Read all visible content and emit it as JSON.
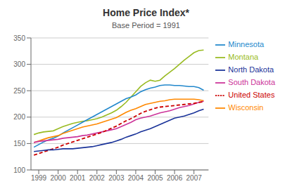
{
  "chart_data": {
    "type": "line",
    "title": "Home Price Index*",
    "subtitle": "Base Period = 1991",
    "x": [
      1998.75,
      1999.0,
      1999.25,
      1999.5,
      1999.75,
      2000.0,
      2000.25,
      2000.5,
      2000.75,
      2001.0,
      2001.25,
      2001.5,
      2001.75,
      2002.0,
      2002.25,
      2002.5,
      2002.75,
      2003.0,
      2003.25,
      2003.5,
      2003.75,
      2004.0,
      2004.25,
      2004.5,
      2004.75,
      2005.0,
      2005.25,
      2005.5,
      2005.75,
      2006.0,
      2006.25,
      2006.5,
      2006.75,
      2007.0,
      2007.25,
      2007.5
    ],
    "series": [
      {
        "name": "Montana",
        "color": "#99bb22",
        "line_style": "solid",
        "values": [
          167,
          170,
          172,
          173,
          174,
          178,
          182,
          185,
          188,
          190,
          192,
          193,
          195,
          197,
          200,
          204,
          208,
          213,
          220,
          228,
          238,
          248,
          258,
          265,
          270,
          268,
          270,
          278,
          285,
          292,
          300,
          308,
          315,
          322,
          326,
          327
        ]
      },
      {
        "name": "Minnesota",
        "color": "#2288cc",
        "line_style": "solid",
        "values": [
          143,
          148,
          153,
          157,
          160,
          164,
          170,
          175,
          180,
          185,
          190,
          195,
          200,
          205,
          210,
          215,
          220,
          225,
          230,
          235,
          238,
          242,
          248,
          252,
          255,
          257,
          260,
          261,
          261,
          260,
          260,
          259,
          258,
          258,
          256,
          251
        ]
      },
      {
        "name": "Wisconsin",
        "color": "#ff8800",
        "line_style": "solid",
        "values": [
          152,
          155,
          158,
          161,
          163,
          165,
          169,
          172,
          175,
          178,
          181,
          183,
          185,
          187,
          190,
          193,
          196,
          199,
          204,
          209,
          213,
          216,
          220,
          224,
          226,
          228,
          230,
          231,
          233,
          234,
          234,
          234,
          234,
          234,
          233,
          231
        ]
      },
      {
        "name": "South Dakota",
        "color": "#cc3399",
        "line_style": "solid",
        "values": [
          152,
          154,
          155,
          156,
          157,
          158,
          160,
          161,
          162,
          163,
          165,
          166,
          168,
          170,
          172,
          174,
          176,
          178,
          182,
          186,
          190,
          195,
          198,
          200,
          202,
          205,
          208,
          210,
          212,
          215,
          218,
          220,
          222,
          225,
          228,
          230
        ]
      },
      {
        "name": "United States",
        "color": "#cc0000",
        "line_style": "dashed",
        "values": [
          128,
          131,
          134,
          137,
          140,
          143,
          147,
          150,
          153,
          156,
          159,
          162,
          165,
          168,
          171,
          175,
          179,
          183,
          188,
          193,
          197,
          202,
          207,
          211,
          214,
          217,
          219,
          220,
          221,
          222,
          223,
          224,
          225,
          226,
          228,
          229
        ]
      },
      {
        "name": "North Dakota",
        "color": "#1a3399",
        "line_style": "solid",
        "values": [
          135,
          136,
          137,
          138,
          138,
          139,
          140,
          140,
          140,
          141,
          142,
          143,
          144,
          146,
          148,
          150,
          152,
          155,
          158,
          162,
          165,
          168,
          172,
          175,
          178,
          182,
          186,
          190,
          194,
          198,
          200,
          202,
          205,
          208,
          212,
          215
        ]
      }
    ],
    "xlim": [
      1998.6,
      2007.75
    ],
    "xticks": [
      1999,
      2000,
      2001,
      2002,
      2003,
      2004,
      2005,
      2006,
      2007
    ],
    "ylim": [
      100,
      350
    ],
    "yticks": [
      100,
      150,
      200,
      250,
      300,
      350
    ],
    "grid": "y",
    "legend": "right"
  }
}
